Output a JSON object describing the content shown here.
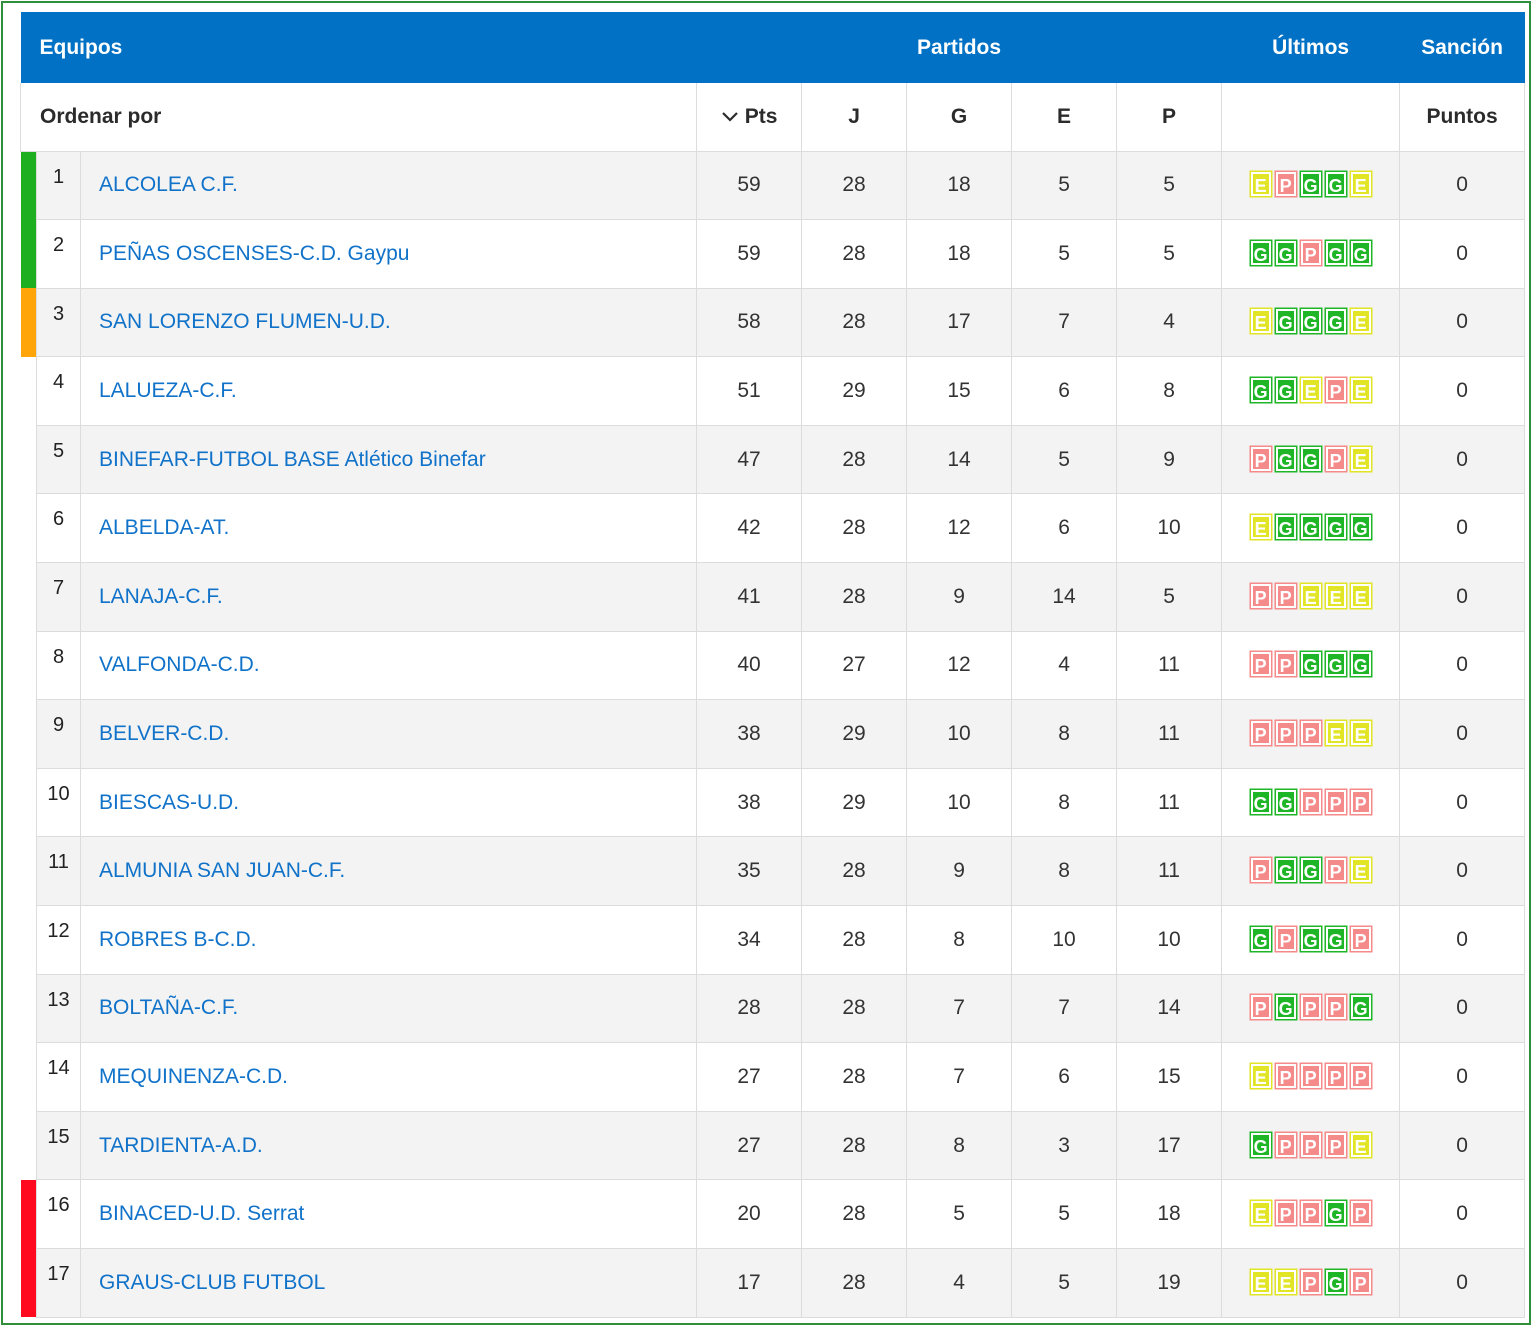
{
  "header": {
    "equipos": "Equipos",
    "partidos": "Partidos",
    "ultimos": "Últimos",
    "sancion": "Sanción"
  },
  "subheader": {
    "ordenar": "Ordenar por",
    "pts": "Pts",
    "j": "J",
    "g": "G",
    "e": "E",
    "p": "P",
    "puntos": "Puntos"
  },
  "colors": {
    "header_bg": "#0071c5",
    "link": "#1072c9",
    "green": "#1eb526",
    "yellow": "#e2e526",
    "red": "#f58a8a",
    "zone_green": "#1eaf21",
    "zone_orange": "#ffa50a",
    "zone_red": "#ff0a1e"
  },
  "rows": [
    {
      "pos": "1",
      "zone": "green",
      "team": "ALCOLEA C.F.",
      "pts": "59",
      "j": "28",
      "g": "18",
      "e": "5",
      "p": "5",
      "form": [
        "E",
        "P",
        "G",
        "G",
        "E"
      ],
      "sancion": "0"
    },
    {
      "pos": "2",
      "zone": "green",
      "team": "PEÑAS OSCENSES-C.D. Gaypu",
      "pts": "59",
      "j": "28",
      "g": "18",
      "e": "5",
      "p": "5",
      "form": [
        "G",
        "G",
        "P",
        "G",
        "G"
      ],
      "sancion": "0"
    },
    {
      "pos": "3",
      "zone": "orange",
      "team": "SAN LORENZO FLUMEN-U.D.",
      "pts": "58",
      "j": "28",
      "g": "17",
      "e": "7",
      "p": "4",
      "form": [
        "E",
        "G",
        "G",
        "G",
        "E"
      ],
      "sancion": "0"
    },
    {
      "pos": "4",
      "zone": "none",
      "team": "LALUEZA-C.F.",
      "pts": "51",
      "j": "29",
      "g": "15",
      "e": "6",
      "p": "8",
      "form": [
        "G",
        "G",
        "E",
        "P",
        "E"
      ],
      "sancion": "0"
    },
    {
      "pos": "5",
      "zone": "none",
      "team": "BINEFAR-FUTBOL BASE Atlético Binefar",
      "pts": "47",
      "j": "28",
      "g": "14",
      "e": "5",
      "p": "9",
      "form": [
        "P",
        "G",
        "G",
        "P",
        "E"
      ],
      "sancion": "0"
    },
    {
      "pos": "6",
      "zone": "none",
      "team": "ALBELDA-AT.",
      "pts": "42",
      "j": "28",
      "g": "12",
      "e": "6",
      "p": "10",
      "form": [
        "E",
        "G",
        "G",
        "G",
        "G"
      ],
      "sancion": "0"
    },
    {
      "pos": "7",
      "zone": "none",
      "team": "LANAJA-C.F.",
      "pts": "41",
      "j": "28",
      "g": "9",
      "e": "14",
      "p": "5",
      "form": [
        "P",
        "P",
        "E",
        "E",
        "E"
      ],
      "sancion": "0"
    },
    {
      "pos": "8",
      "zone": "none",
      "team": "VALFONDA-C.D.",
      "pts": "40",
      "j": "27",
      "g": "12",
      "e": "4",
      "p": "11",
      "form": [
        "P",
        "P",
        "G",
        "G",
        "G"
      ],
      "sancion": "0"
    },
    {
      "pos": "9",
      "zone": "none",
      "team": "BELVER-C.D.",
      "pts": "38",
      "j": "29",
      "g": "10",
      "e": "8",
      "p": "11",
      "form": [
        "P",
        "P",
        "P",
        "E",
        "E"
      ],
      "sancion": "0"
    },
    {
      "pos": "10",
      "zone": "none",
      "team": "BIESCAS-U.D.",
      "pts": "38",
      "j": "29",
      "g": "10",
      "e": "8",
      "p": "11",
      "form": [
        "G",
        "G",
        "P",
        "P",
        "P"
      ],
      "sancion": "0"
    },
    {
      "pos": "11",
      "zone": "none",
      "team": "ALMUNIA SAN JUAN-C.F.",
      "pts": "35",
      "j": "28",
      "g": "9",
      "e": "8",
      "p": "11",
      "form": [
        "P",
        "G",
        "G",
        "P",
        "E"
      ],
      "sancion": "0"
    },
    {
      "pos": "12",
      "zone": "none",
      "team": "ROBRES B-C.D.",
      "pts": "34",
      "j": "28",
      "g": "8",
      "e": "10",
      "p": "10",
      "form": [
        "G",
        "P",
        "G",
        "G",
        "P"
      ],
      "sancion": "0"
    },
    {
      "pos": "13",
      "zone": "none",
      "team": "BOLTAÑA-C.F.",
      "pts": "28",
      "j": "28",
      "g": "7",
      "e": "7",
      "p": "14",
      "form": [
        "P",
        "G",
        "P",
        "P",
        "G"
      ],
      "sancion": "0"
    },
    {
      "pos": "14",
      "zone": "none",
      "team": "MEQUINENZA-C.D.",
      "pts": "27",
      "j": "28",
      "g": "7",
      "e": "6",
      "p": "15",
      "form": [
        "E",
        "P",
        "P",
        "P",
        "P"
      ],
      "sancion": "0"
    },
    {
      "pos": "15",
      "zone": "none",
      "team": "TARDIENTA-A.D.",
      "pts": "27",
      "j": "28",
      "g": "8",
      "e": "3",
      "p": "17",
      "form": [
        "G",
        "P",
        "P",
        "P",
        "E"
      ],
      "sancion": "0"
    },
    {
      "pos": "16",
      "zone": "red",
      "team": "BINACED-U.D. Serrat",
      "pts": "20",
      "j": "28",
      "g": "5",
      "e": "5",
      "p": "18",
      "form": [
        "E",
        "P",
        "P",
        "G",
        "P"
      ],
      "sancion": "0"
    },
    {
      "pos": "17",
      "zone": "red",
      "team": "GRAUS-CLUB FUTBOL",
      "pts": "17",
      "j": "28",
      "g": "4",
      "e": "5",
      "p": "19",
      "form": [
        "E",
        "E",
        "P",
        "G",
        "P"
      ],
      "sancion": "0"
    }
  ]
}
